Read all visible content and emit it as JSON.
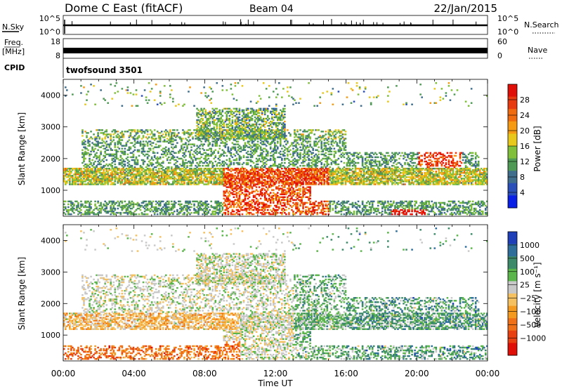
{
  "header": {
    "title": "Dome C East (fitACF)",
    "beam": "Beam 04",
    "date": "22/Jan/2015"
  },
  "nsky_panel": {
    "left_label": "N.Sky",
    "left_ticks": [
      "10^5",
      "10^0"
    ],
    "right_ticks": [
      "10^5",
      "10^0"
    ],
    "right_label": "N.Search"
  },
  "freq_panel": {
    "left_label": "Freq.",
    "left_unit": "[MHz]",
    "left_ticks": [
      "18",
      "8"
    ],
    "right_ticks": [
      "60",
      "0"
    ],
    "right_label": "Nave"
  },
  "cpid": {
    "label": "CPID",
    "value": "twofsound 3501"
  },
  "chart_data": [
    {
      "type": "heatmap",
      "panel": "power",
      "ylabel": "Slant Range [km]",
      "xlabel": "",
      "xlim": [
        "00:00",
        "24:00"
      ],
      "ylim": [
        180,
        4500
      ],
      "x_ticks": [
        "00:00",
        "04:00",
        "08:00",
        "12:00",
        "16:00",
        "20:00",
        "00:00"
      ],
      "y_ticks": [
        1000,
        2000,
        3000,
        4000
      ],
      "colorbar": {
        "label": "Power [dB]",
        "ticks": [
          "4",
          "8",
          "12",
          "16",
          "20",
          "24",
          "28"
        ],
        "colors": [
          "#0a1fe6",
          "#2a4fb8",
          "#3f6e8c",
          "#4f9a55",
          "#7fbf3a",
          "#e8c81a",
          "#f59a12",
          "#f06a10",
          "#e83a10",
          "#e01008"
        ]
      }
    },
    {
      "type": "heatmap",
      "panel": "velocity",
      "ylabel": "Slant Range [km]",
      "xlabel": "Time UT",
      "xlim": [
        "00:00",
        "24:00"
      ],
      "ylim": [
        180,
        4500
      ],
      "x_ticks": [
        "00:00",
        "04:00",
        "08:00",
        "12:00",
        "16:00",
        "20:00",
        "00:00"
      ],
      "y_ticks": [
        1000,
        2000,
        3000,
        4000
      ],
      "colorbar": {
        "label": "Velocity [m s⁻¹]",
        "ticks": [
          "1000",
          "500",
          "100",
          "25",
          "−25",
          "−100",
          "−500",
          "−1000"
        ],
        "colors": [
          "#1f3fb8",
          "#2e6e9a",
          "#3d8a6a",
          "#5ab54a",
          "#c8c8c8",
          "#f5c060",
          "#f59a20",
          "#f07018",
          "#e84010",
          "#e01008"
        ]
      }
    }
  ]
}
